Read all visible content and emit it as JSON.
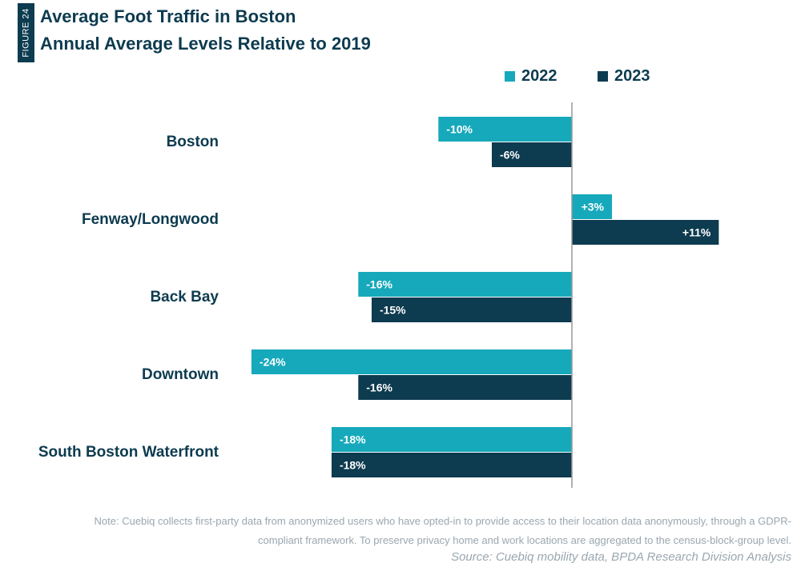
{
  "figure_label": "FIGURE 24",
  "colors": {
    "series_2022": "#16a9bb",
    "series_2023": "#0d3b4f",
    "text": "#0d3b4f",
    "axis": "#999999"
  },
  "chart_data": {
    "type": "bar",
    "orientation": "horizontal",
    "title": "Average Foot Traffic in Boston",
    "subtitle": "Annual Average Levels Relative to 2019",
    "categories": [
      "Boston",
      "Fenway/Longwood",
      "Back Bay",
      "Downtown",
      "South Boston Waterfront"
    ],
    "series": [
      {
        "name": "2022",
        "values": [
          -10,
          3,
          -16,
          -24,
          -18
        ],
        "labels": [
          "-10%",
          "+3%",
          "-16%",
          "-24%",
          "-18%"
        ]
      },
      {
        "name": "2023",
        "values": [
          -6,
          11,
          -15,
          -16,
          -18
        ],
        "labels": [
          "-6%",
          "+11%",
          "-15%",
          "-16%",
          "-18%"
        ]
      }
    ],
    "xlim": [
      -24,
      11
    ],
    "grid": false,
    "legend_position": "top-right"
  },
  "note": "Note: Cuebiq collects first-party data from anonymized users who have opted-in to provide access to their location data anonymously, through a GDPR-compliant framework. To preserve privacy home and work locations are aggregated to the census-block-group level.",
  "source": "Source: Cuebiq mobility data, BPDA Research Division Analysis"
}
